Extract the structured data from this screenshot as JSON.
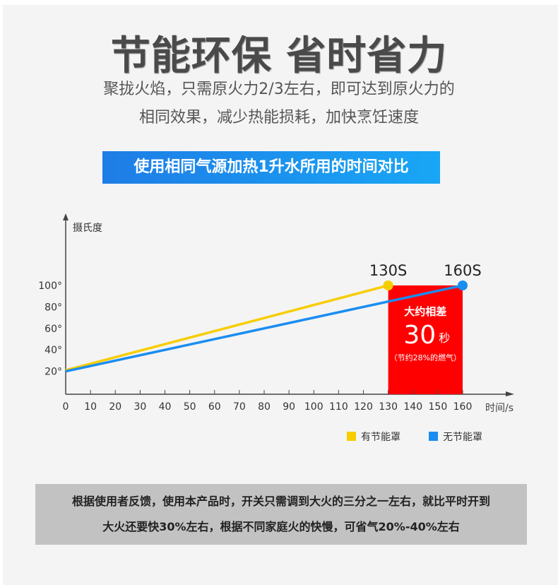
{
  "header": {
    "title": "节能环保  省时省力",
    "subtitle_line1": "聚拢火焰，只需原火力2/3左右，即可达到原火力的",
    "subtitle_line2": "相同效果，减少热能损耗，加快烹饪速度",
    "banner": "使用相同气源加热1升水所用的时间对比"
  },
  "chart_data": {
    "type": "line",
    "ylabel": "摄氏度",
    "xlabel": "时间/s",
    "x_ticks": [
      0,
      10,
      20,
      30,
      40,
      50,
      60,
      70,
      80,
      90,
      100,
      110,
      120,
      130,
      140,
      150,
      160
    ],
    "y_ticks": [
      20,
      40,
      60,
      80,
      100
    ],
    "y_tick_labels": [
      "20°",
      "40°",
      "60°",
      "80°",
      "100°"
    ],
    "xlim": [
      0,
      160
    ],
    "ylim": [
      0,
      100
    ],
    "series": [
      {
        "name": "有节能罩",
        "color": "#f7cd00",
        "points": [
          [
            0,
            21
          ],
          [
            130,
            100
          ]
        ],
        "end_label": "130S"
      },
      {
        "name": "无节能罩",
        "color": "#1a8df0",
        "points": [
          [
            0,
            20
          ],
          [
            160,
            100
          ]
        ],
        "end_label": "160S"
      }
    ],
    "annotation": {
      "x_range": [
        130,
        160
      ],
      "color": "#ff0000",
      "line1": "大约相差",
      "big_value": "30",
      "unit": "秒",
      "line3": "（节约28%的燃气）"
    },
    "legend_position": "bottom-right",
    "grid": false
  },
  "footer": {
    "line1": "根据使用者反馈，使用本产品时，开关只需调到大火的三分之一左右，就比平时开到",
    "line2": "大火还要快30%左右，根据不同家庭火的快慢，可省气20%-40%左右"
  }
}
